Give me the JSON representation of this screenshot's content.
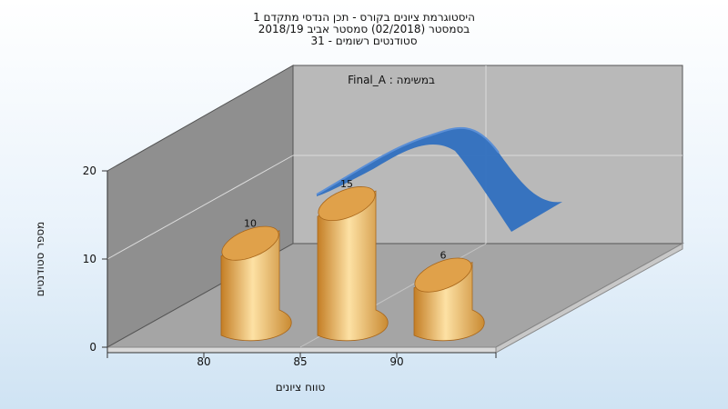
{
  "chart_data": {
    "type": "bar",
    "title_lines": [
      "היסטוגרמת ציונים בקורס - תכן הנדסי מתקדם 1",
      "בסמסטר  (02/2018)  סמסטר אביב 2018/19",
      "סטודנטים רשומים - 31"
    ],
    "inner_label": "במשימה : Final_A",
    "xlabel": "טווח ציונים",
    "ylabel": "מספר סטודנטים",
    "categories": [
      "80",
      "85",
      "90"
    ],
    "values": [
      10,
      15,
      6
    ],
    "yticks": [
      0,
      10,
      20
    ],
    "ylim": [
      0,
      20
    ],
    "trend_series": {
      "style": "3d-ribbon",
      "color": "#2f6fbf"
    },
    "colors": {
      "bar_light": "#fde1a4",
      "bar_mid": "#e8a74a",
      "bar_dark": "#b8731f",
      "back_wall": "#b9b9b9",
      "side_wall": "#8f8f8f",
      "floor": "#a5a5a5",
      "ribbon": "#2f6fbf"
    },
    "grid": true
  }
}
